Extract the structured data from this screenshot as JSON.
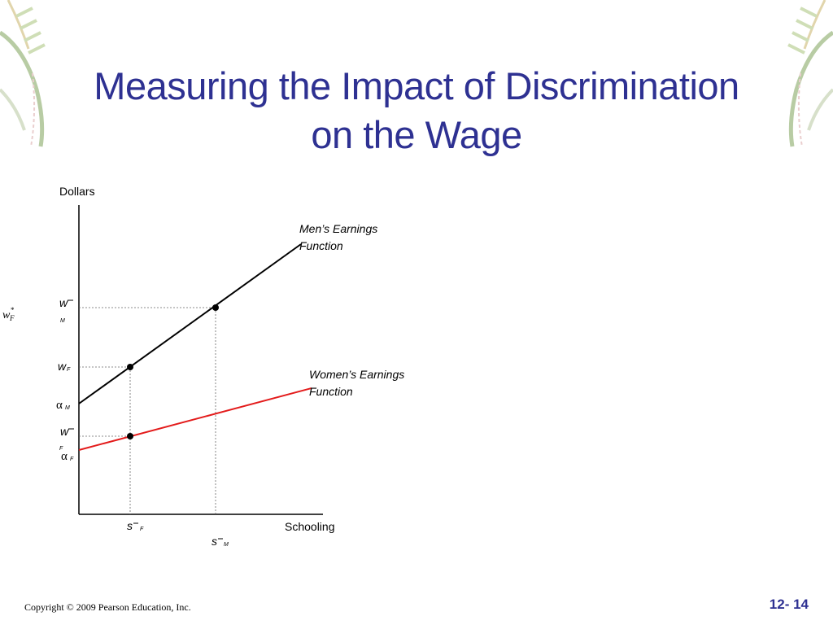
{
  "slide": {
    "title_line1": "Measuring the Impact of Discrimination",
    "title_line2": "on the Wage",
    "copyright": "Copyright © 2009 Pearson Education, Inc.",
    "page_number": "12- 14",
    "title_color": "#2e3192"
  },
  "diagram": {
    "y_axis_label": "Dollars",
    "x_axis_label": "Schooling",
    "men_curve_label_line1": "Men’s Earnings",
    "men_curve_label_line2": "Function",
    "women_curve_label_line1": "Women’s Earnings",
    "women_curve_label_line2": "Function",
    "men_line_color": "#000000",
    "women_line_color": "#e31b1b",
    "y_markers": {
      "wm_bar": "w",
      "wm_bar_sub": "M",
      "wf_star": "w",
      "wf_star_sup": "*",
      "wf_star_sub": "F",
      "wf": "w",
      "wf_sub": "F",
      "alpha_m": "α",
      "alpha_m_sub": "M",
      "wf_bar": "w",
      "wf_bar_sub": "F",
      "alpha_f": "α",
      "alpha_f_sub": "F"
    },
    "x_markers": {
      "sf_bar": "s",
      "sf_bar_sub": "F",
      "sm_bar": "s",
      "sm_bar_sub": "M"
    }
  }
}
